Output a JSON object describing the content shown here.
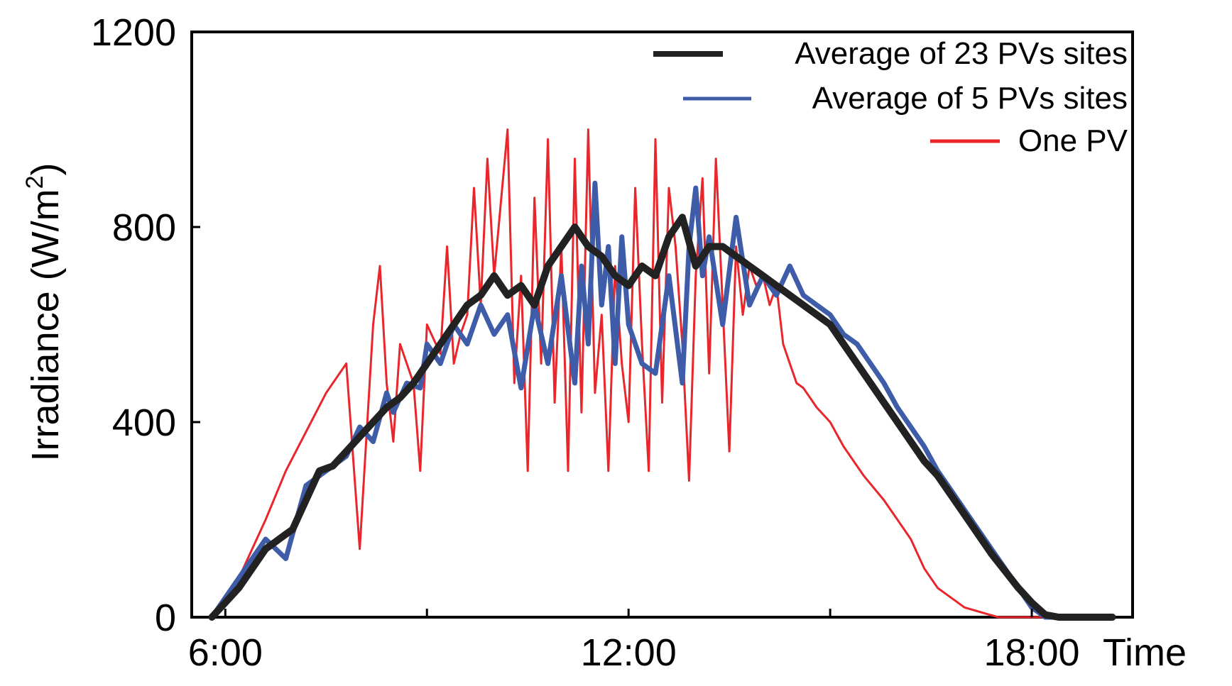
{
  "chart_data": {
    "type": "line",
    "title": "",
    "xlabel": "Time",
    "ylabel": "Irradiance (W/m",
    "ylabel_superscript": "2",
    "ylabel_close": ")",
    "xlim": [
      5.5,
      19.5
    ],
    "ylim": [
      0,
      1200
    ],
    "x_ticks": [
      6,
      9,
      12,
      15,
      18
    ],
    "x_tick_labels": [
      "6:00",
      "12:00",
      "18:00"
    ],
    "x_tick_label_positions": [
      6,
      12,
      18
    ],
    "y_ticks": [
      0,
      400,
      800,
      1200
    ],
    "y_tick_labels": [
      "0",
      "400",
      "800",
      "1200"
    ],
    "legend_position": "top-right",
    "series": [
      {
        "name": "One PV",
        "color": "#e8262b",
        "x": [
          5.8,
          6.2,
          6.6,
          6.9,
          7.2,
          7.5,
          7.8,
          8.0,
          8.2,
          8.3,
          8.4,
          8.5,
          8.6,
          8.8,
          8.9,
          9.0,
          9.2,
          9.3,
          9.4,
          9.5,
          9.6,
          9.7,
          9.8,
          9.9,
          10.0,
          10.2,
          10.3,
          10.4,
          10.5,
          10.6,
          10.7,
          10.8,
          10.9,
          11.0,
          11.1,
          11.2,
          11.3,
          11.4,
          11.5,
          11.6,
          11.7,
          11.8,
          11.9,
          12.0,
          12.1,
          12.2,
          12.3,
          12.4,
          12.5,
          12.6,
          12.7,
          12.8,
          12.9,
          13.0,
          13.1,
          13.2,
          13.3,
          13.4,
          13.5,
          13.6,
          13.7,
          13.8,
          13.9,
          14.0,
          14.1,
          14.2,
          14.3,
          14.4,
          14.5,
          14.6,
          14.8,
          15.0,
          15.2,
          15.5,
          15.8,
          16.0,
          16.2,
          16.3,
          16.4,
          16.6,
          17.0,
          17.5,
          18.0,
          18.5,
          19.0
        ],
        "y": [
          0,
          80,
          200,
          300,
          380,
          460,
          520,
          140,
          600,
          720,
          480,
          360,
          560,
          480,
          300,
          600,
          540,
          760,
          520,
          580,
          620,
          880,
          640,
          940,
          700,
          1000,
          480,
          700,
          300,
          860,
          520,
          980,
          440,
          760,
          300,
          940,
          420,
          1000,
          460,
          620,
          300,
          720,
          520,
          400,
          880,
          560,
          300,
          980,
          440,
          880,
          760,
          560,
          280,
          700,
          900,
          500,
          940,
          640,
          340,
          760,
          620,
          720,
          680,
          700,
          640,
          680,
          560,
          520,
          480,
          470,
          430,
          400,
          350,
          290,
          240,
          200,
          160,
          130,
          100,
          60,
          20,
          0,
          0,
          0,
          0
        ]
      },
      {
        "name": "Average of 5 PVs sites",
        "color": "#3e5ca8",
        "x": [
          5.8,
          6.2,
          6.6,
          6.9,
          7.2,
          7.5,
          7.8,
          8.0,
          8.2,
          8.4,
          8.5,
          8.7,
          8.9,
          9.0,
          9.2,
          9.4,
          9.6,
          9.8,
          10.0,
          10.2,
          10.4,
          10.6,
          10.8,
          11.0,
          11.2,
          11.3,
          11.4,
          11.5,
          11.6,
          11.7,
          11.8,
          11.9,
          12.0,
          12.2,
          12.4,
          12.6,
          12.8,
          12.9,
          13.0,
          13.1,
          13.2,
          13.4,
          13.6,
          13.8,
          14.0,
          14.2,
          14.4,
          14.6,
          14.8,
          15.0,
          15.2,
          15.4,
          15.6,
          15.8,
          16.0,
          16.2,
          16.4,
          16.6,
          16.8,
          17.0,
          17.2,
          17.4,
          17.6,
          17.8,
          18.0,
          18.2,
          18.4,
          18.6,
          18.8,
          19.0,
          19.2
        ],
        "y": [
          0,
          80,
          160,
          120,
          270,
          300,
          330,
          390,
          360,
          460,
          420,
          480,
          470,
          560,
          520,
          600,
          560,
          640,
          580,
          620,
          470,
          640,
          520,
          700,
          480,
          720,
          560,
          890,
          640,
          760,
          520,
          780,
          600,
          520,
          500,
          700,
          480,
          760,
          880,
          700,
          780,
          600,
          820,
          640,
          700,
          660,
          720,
          660,
          640,
          620,
          580,
          560,
          520,
          480,
          430,
          390,
          350,
          300,
          260,
          220,
          180,
          140,
          100,
          60,
          20,
          0,
          0,
          0,
          0,
          0,
          0
        ]
      },
      {
        "name": "Average of 23 PVs sites",
        "color": "#222222",
        "x": [
          5.8,
          6.2,
          6.6,
          6.9,
          7.0,
          7.2,
          7.4,
          7.6,
          7.8,
          8.0,
          8.2,
          8.4,
          8.6,
          8.8,
          9.0,
          9.2,
          9.4,
          9.6,
          9.8,
          10.0,
          10.2,
          10.4,
          10.6,
          10.8,
          11.0,
          11.2,
          11.4,
          11.6,
          11.8,
          12.0,
          12.2,
          12.4,
          12.6,
          12.8,
          13.0,
          13.2,
          13.4,
          13.6,
          13.8,
          14.0,
          14.2,
          14.4,
          14.6,
          14.8,
          15.0,
          15.2,
          15.4,
          15.6,
          15.8,
          16.0,
          16.2,
          16.4,
          16.6,
          16.8,
          17.0,
          17.2,
          17.4,
          17.6,
          17.8,
          18.0,
          18.2,
          18.4,
          18.6,
          18.8,
          19.0,
          19.2
        ],
        "y": [
          0,
          60,
          140,
          170,
          180,
          240,
          300,
          310,
          340,
          370,
          400,
          430,
          450,
          480,
          520,
          560,
          600,
          640,
          660,
          700,
          660,
          680,
          640,
          720,
          760,
          800,
          760,
          740,
          700,
          680,
          720,
          700,
          780,
          820,
          720,
          760,
          760,
          740,
          720,
          700,
          680,
          660,
          640,
          620,
          600,
          560,
          520,
          480,
          440,
          400,
          360,
          320,
          290,
          250,
          210,
          170,
          130,
          95,
          60,
          30,
          5,
          0,
          0,
          0,
          0,
          0
        ]
      }
    ]
  }
}
